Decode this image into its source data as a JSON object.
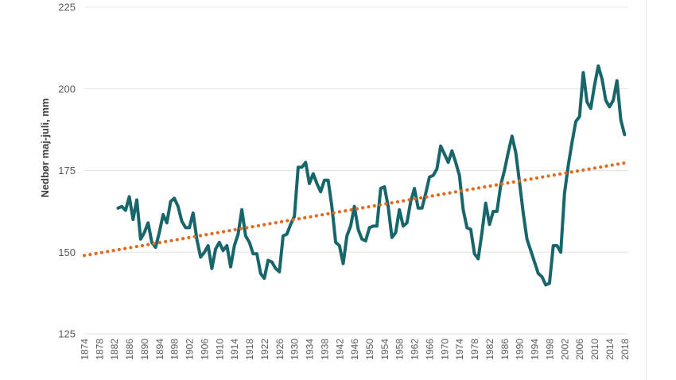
{
  "chart_data": {
    "type": "line",
    "title": "",
    "xlabel": "",
    "ylabel": "Nedbør maj-juli, mm",
    "ylim": [
      125,
      225
    ],
    "y_ticks": [
      125,
      150,
      175,
      200,
      225
    ],
    "xlim": [
      1874,
      2019
    ],
    "x_tick_labels": [
      "1874",
      "1878",
      "1882",
      "1886",
      "1890",
      "1894",
      "1898",
      "1902",
      "1906",
      "1910",
      "1914",
      "1918",
      "1922",
      "1926",
      "1930",
      "1934",
      "1938",
      "1942",
      "1946",
      "1950",
      "1954",
      "1958",
      "1962",
      "1966",
      "1970",
      "1974",
      "1978",
      "1982",
      "1986",
      "1990",
      "1994",
      "1998",
      "2002",
      "2006",
      "2010",
      "2014",
      "2018"
    ],
    "grid": "horizontal",
    "legend": "none",
    "series": [
      {
        "style": "solid",
        "color": "#17666b",
        "x": [
          1883,
          1884,
          1885,
          1886,
          1887,
          1888,
          1889,
          1890,
          1891,
          1892,
          1893,
          1894,
          1895,
          1896,
          1897,
          1898,
          1899,
          1900,
          1901,
          1902,
          1903,
          1904,
          1905,
          1906,
          1907,
          1908,
          1909,
          1910,
          1911,
          1912,
          1913,
          1914,
          1915,
          1916,
          1917,
          1918,
          1919,
          1920,
          1921,
          1922,
          1923,
          1924,
          1925,
          1926,
          1927,
          1928,
          1929,
          1930,
          1931,
          1932,
          1933,
          1934,
          1935,
          1936,
          1937,
          1938,
          1939,
          1940,
          1941,
          1942,
          1943,
          1944,
          1945,
          1946,
          1947,
          1948,
          1949,
          1950,
          1951,
          1952,
          1953,
          1954,
          1955,
          1956,
          1957,
          1958,
          1959,
          1960,
          1961,
          1962,
          1963,
          1964,
          1965,
          1966,
          1967,
          1968,
          1969,
          1970,
          1971,
          1972,
          1973,
          1974,
          1975,
          1976,
          1977,
          1978,
          1979,
          1980,
          1981,
          1982,
          1983,
          1984,
          1985,
          1986,
          1987,
          1988,
          1989,
          1990,
          1991,
          1992,
          1993,
          1994,
          1995,
          1996,
          1997,
          1998,
          1999,
          2000,
          2001,
          2002,
          2003,
          2004,
          2005,
          2006,
          2007,
          2008,
          2009,
          2010,
          2011,
          2012,
          2013,
          2014,
          2015,
          2016,
          2017,
          2018
        ],
        "values": [
          163.5,
          164,
          162.8,
          167,
          160,
          166,
          154,
          156,
          159,
          153,
          151.5,
          156,
          161.5,
          159,
          165.5,
          166.5,
          164,
          159.5,
          157.5,
          157.5,
          162,
          154,
          148.5,
          150,
          152,
          145,
          151,
          153,
          150.5,
          152,
          145.5,
          152,
          155.5,
          163,
          155,
          153,
          149.5,
          149.5,
          143.5,
          142,
          147.5,
          147,
          145,
          144,
          155,
          155.5,
          158.5,
          161,
          176,
          176,
          177.5,
          171,
          174,
          171,
          168.5,
          172,
          172,
          164,
          153,
          152,
          146.5,
          155,
          158,
          164,
          157,
          154,
          153.5,
          157.5,
          158,
          158,
          169.5,
          170,
          164,
          154.5,
          156,
          163,
          158,
          159,
          165.5,
          169.5,
          163.5,
          163.5,
          168,
          173,
          173.5,
          175.5,
          182.5,
          180,
          177.5,
          181,
          177.5,
          173.5,
          163,
          157.5,
          157,
          149.5,
          148,
          156,
          165,
          158.5,
          162.5,
          162.5,
          170.5,
          175,
          180.5,
          185.5,
          180.5,
          171.5,
          162,
          154,
          150.5,
          147,
          143.5,
          142.5,
          140,
          140.5,
          152,
          152,
          150,
          168,
          176.5,
          183.5,
          190,
          191.5,
          205,
          196,
          194,
          201,
          207,
          203,
          196.5,
          194.5,
          196.5,
          202.5,
          190.5,
          186
        ]
      },
      {
        "style": "dotted",
        "kind": "linear trend",
        "color": "#e06b1f",
        "x": [
          1874,
          2019
        ],
        "values": [
          149,
          177.5
        ]
      }
    ]
  }
}
